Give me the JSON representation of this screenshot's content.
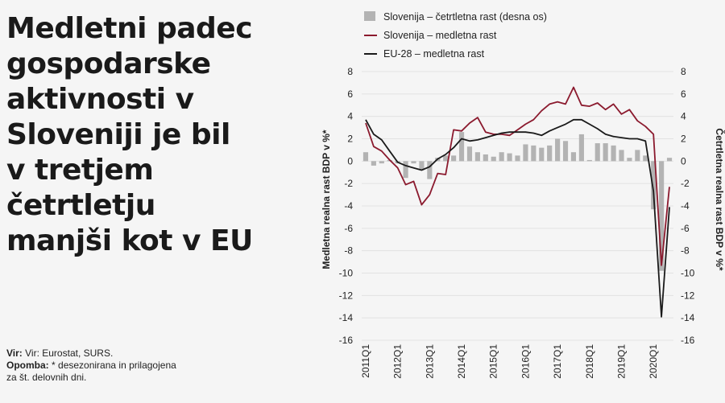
{
  "headline": [
    "Medletni padec",
    "gospodarske",
    "aktivnosti v",
    "Sloveniji je bil",
    "v tretjem",
    "četrtletju",
    "manjši kot v EU"
  ],
  "notes": {
    "source_label": "Vir:",
    "source_text": "Vir: Eurostat, SURS.",
    "note_label": "Opomba:",
    "note_text_1": "* desezonirana in prilagojena",
    "note_text_2": "za št. delovnih dni."
  },
  "chart_data": {
    "type": "bar",
    "ylabel": "Medletna realna rast BDP v %*",
    "ylabel_right": "Četrtletna realna rast BDP v %*",
    "ylim": [
      -16,
      8
    ],
    "ylim_right": [
      -16,
      8
    ],
    "yticks": [
      8,
      6,
      4,
      2,
      0,
      -2,
      -4,
      -6,
      -8,
      -10,
      -12,
      -14,
      -16
    ],
    "grid": "horizontal",
    "legend": "top",
    "x_tick_labels": [
      "2011Q1",
      "2012Q1",
      "2013Q1",
      "2014Q1",
      "2015Q1",
      "2016Q1",
      "2017Q1",
      "2018Q1",
      "2019Q1",
      "2020Q1"
    ],
    "x": [
      "2011Q1",
      "2011Q2",
      "2011Q3",
      "2011Q4",
      "2012Q1",
      "2012Q2",
      "2012Q3",
      "2012Q4",
      "2013Q1",
      "2013Q2",
      "2013Q3",
      "2013Q4",
      "2014Q1",
      "2014Q2",
      "2014Q3",
      "2014Q4",
      "2015Q1",
      "2015Q2",
      "2015Q3",
      "2015Q4",
      "2016Q1",
      "2016Q2",
      "2016Q3",
      "2016Q4",
      "2017Q1",
      "2017Q2",
      "2017Q3",
      "2017Q4",
      "2018Q1",
      "2018Q2",
      "2018Q3",
      "2018Q4",
      "2019Q1",
      "2019Q2",
      "2019Q3",
      "2019Q4",
      "2020Q1",
      "2020Q2",
      "2020Q3"
    ],
    "series": [
      {
        "name": "Slovenija  – četrtletna rast (desna os)",
        "type": "bar",
        "axis": "right",
        "color": "#b3b3b3",
        "values": [
          0.8,
          -0.4,
          -0.2,
          0.1,
          -0.2,
          -1.5,
          -0.2,
          -0.8,
          -1.6,
          0.3,
          0.5,
          0.5,
          2.6,
          1.3,
          0.8,
          0.6,
          0.4,
          0.8,
          0.7,
          0.5,
          1.5,
          1.4,
          1.2,
          1.4,
          2.0,
          1.8,
          0.8,
          2.4,
          0.1,
          1.6,
          1.6,
          1.4,
          1.0,
          0.3,
          1.0,
          0.5,
          -4.3,
          -9.8,
          0.3
        ]
      },
      {
        "name": "Slovenija  – medletna rast",
        "type": "line",
        "axis": "left",
        "color": "#8b1a2e",
        "values": [
          3.4,
          1.3,
          0.9,
          0.1,
          -0.6,
          -2.1,
          -1.8,
          -3.9,
          -3.0,
          -1.1,
          -1.2,
          2.8,
          2.7,
          3.4,
          3.9,
          2.6,
          2.4,
          2.4,
          2.3,
          2.8,
          3.3,
          3.7,
          4.5,
          5.1,
          5.3,
          5.1,
          6.6,
          5.0,
          4.9,
          5.2,
          4.6,
          5.1,
          4.2,
          4.6,
          3.6,
          3.1,
          2.4,
          -9.3,
          -2.3
        ]
      },
      {
        "name": "EU-28  – medletna rast",
        "type": "line",
        "axis": "left",
        "color": "#1a1a1a",
        "values": [
          3.7,
          2.4,
          1.9,
          0.9,
          -0.1,
          -0.4,
          -0.6,
          -0.8,
          -0.5,
          0.2,
          0.6,
          1.2,
          2.0,
          1.8,
          1.9,
          2.1,
          2.3,
          2.5,
          2.6,
          2.6,
          2.6,
          2.5,
          2.3,
          2.7,
          3.0,
          3.3,
          3.7,
          3.7,
          3.3,
          2.9,
          2.4,
          2.2,
          2.1,
          2.0,
          2.0,
          1.8,
          -2.7,
          -13.9,
          -4.1
        ]
      }
    ]
  }
}
